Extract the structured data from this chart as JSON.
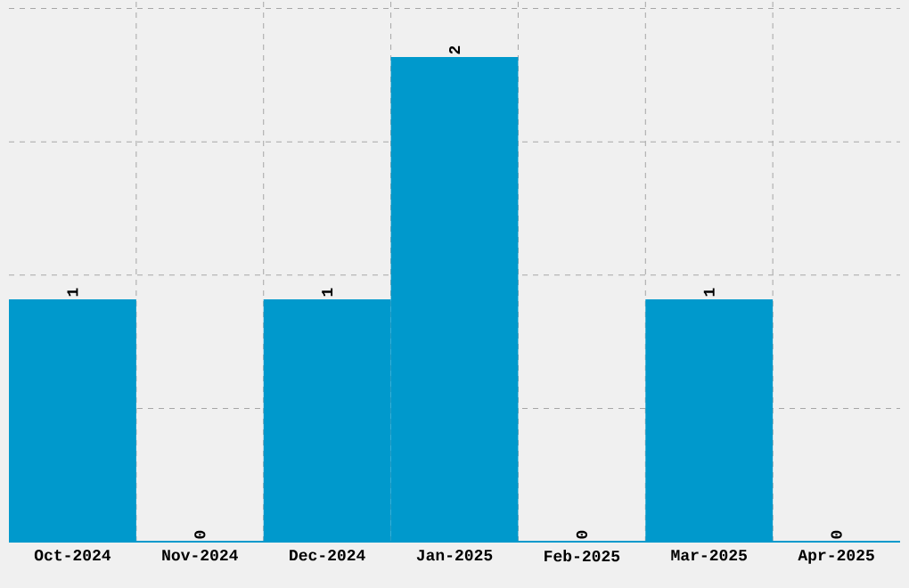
{
  "chart_data": {
    "type": "bar",
    "categories": [
      "Oct-2024",
      "Nov-2024",
      "Dec-2024",
      "Jan-2025",
      "Feb-2025",
      "Mar-2025",
      "Apr-2025"
    ],
    "values": [
      1,
      0,
      1,
      2,
      0,
      1,
      0
    ],
    "color": "#0099cc",
    "data_labels": true,
    "grid": true,
    "ylim": [
      0,
      2.235
    ],
    "yticks": [
      {
        "value": 0.55,
        "label": null
      },
      {
        "value": 1.1,
        "label": null
      },
      {
        "value": 1.65,
        "label": null
      },
      {
        "value": 2.2,
        "label": null
      }
    ],
    "tick_labels": "x"
  }
}
